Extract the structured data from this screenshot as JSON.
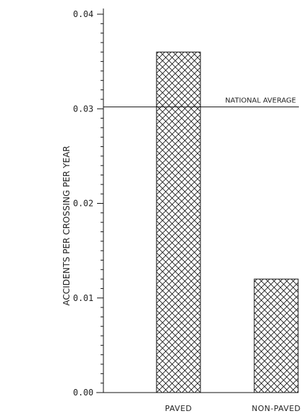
{
  "chart_data": {
    "type": "bar",
    "categories": [
      "PAVED",
      "NON-PAVED"
    ],
    "values": [
      0.036,
      0.012
    ],
    "ylabel": "ACCIDENTS PER CROSSING PER YEAR",
    "xlabel": "",
    "ylim": [
      0,
      0.04
    ],
    "yticks": [
      "0.00",
      "0.01",
      "0.02",
      "0.03",
      "0.04"
    ],
    "reference_line": {
      "label": "NATIONAL AVERAGE",
      "value": 0.0302
    },
    "bar_fill": "crosshatch",
    "grid": false
  }
}
